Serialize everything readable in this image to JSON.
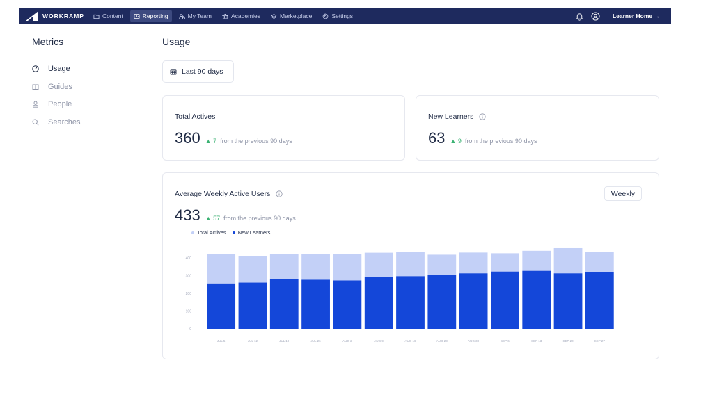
{
  "brand": {
    "name": "WORKRAMP"
  },
  "nav": {
    "items": [
      {
        "label": "Content",
        "icon": "folder-icon"
      },
      {
        "label": "Reporting",
        "icon": "report-icon",
        "active": true
      },
      {
        "label": "My Team",
        "icon": "team-icon"
      },
      {
        "label": "Academies",
        "icon": "academy-icon"
      },
      {
        "label": "Marketplace",
        "icon": "marketplace-icon"
      },
      {
        "label": "Settings",
        "icon": "gear-icon"
      }
    ],
    "learner_home": "Learner Home →"
  },
  "sidebar": {
    "title": "Metrics",
    "items": [
      {
        "label": "Usage",
        "icon": "gauge-icon",
        "active": true
      },
      {
        "label": "Guides",
        "icon": "book-icon"
      },
      {
        "label": "People",
        "icon": "person-icon"
      },
      {
        "label": "Searches",
        "icon": "search-icon"
      }
    ]
  },
  "main": {
    "title": "Usage",
    "date_range": "Last 90 days",
    "cards": {
      "total_actives": {
        "title": "Total Actives",
        "value": "360",
        "delta": "▲ 7",
        "note": "from the previous 90 days"
      },
      "new_learners": {
        "title": "New Learners",
        "value": "63",
        "delta": "▲ 9",
        "note": "from the previous 90 days"
      },
      "weekly": {
        "title": "Average Weekly Active Users",
        "value": "433",
        "delta": "▲ 57",
        "note": "from the previous 90 days",
        "period_button": "Weekly"
      }
    }
  },
  "colors": {
    "nav_bg": "#1e2a5e",
    "total_actives": "#c3d0f7",
    "new_learners": "#1447d9",
    "delta_green": "#3bb273"
  },
  "chart_data": {
    "type": "bar",
    "stacked": true,
    "categories": [
      "JUL 5",
      "JUL 12",
      "JUL 19",
      "JUL 26",
      "AUG 2",
      "AUG 9",
      "AUG 16",
      "AUG 23",
      "AUG 30",
      "SEP 6",
      "SEP 13",
      "SEP 20",
      "SEP 27"
    ],
    "series": [
      {
        "name": "New Learners",
        "values": [
          255,
          260,
          280,
          276,
          272,
          292,
          296,
          302,
          312,
          322,
          326,
          312,
          319
        ]
      },
      {
        "name": "Total Actives",
        "values": [
          165,
          150,
          140,
          146,
          149,
          136,
          136,
          115,
          117,
          103,
          113,
          142,
          112
        ]
      }
    ],
    "ytick_labels": [
      "0",
      "100",
      "200",
      "300",
      "400"
    ],
    "ylim": [
      0,
      450
    ],
    "legend": "top-left",
    "grid": false
  }
}
